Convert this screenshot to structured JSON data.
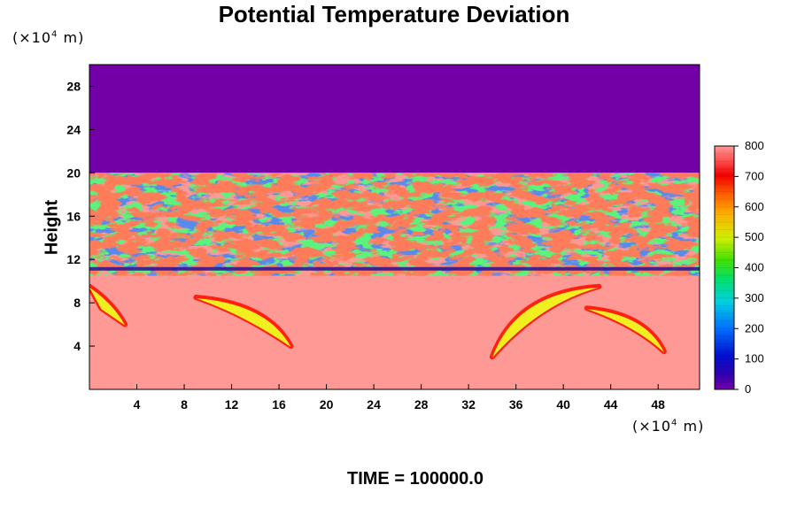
{
  "chart_data": {
    "type": "heatmap",
    "title": "Potential Temperature Deviation",
    "ylabel": "Height",
    "xlabel": "",
    "x_unit": "(×10⁴ m)",
    "y_unit": "(×10⁴ m)",
    "unit_prefix": "(×10",
    "unit_exp": "4",
    "unit_suffix": " m)",
    "footer": "TIME = 100000.0",
    "xlim": [
      0,
      51.5
    ],
    "ylim": [
      0,
      30
    ],
    "x_ticks": [
      "4",
      "8",
      "12",
      "16",
      "20",
      "24",
      "28",
      "32",
      "36",
      "40",
      "44",
      "48"
    ],
    "y_ticks": [
      "4",
      "8",
      "12",
      "16",
      "20",
      "24",
      "28"
    ],
    "colorbar": {
      "min": 0,
      "max": 800,
      "tick_labels": [
        "0",
        "100",
        "200",
        "300",
        "400",
        "500",
        "600",
        "700",
        "800"
      ]
    },
    "regions": [
      {
        "y_range": [
          20,
          30
        ],
        "value": 0,
        "description_color": "purple"
      },
      {
        "y_range": [
          0,
          20
        ],
        "value": 800,
        "description_color": "salmon"
      }
    ],
    "colors": {
      "low": "#7300a6",
      "high": "#ff9996"
    }
  }
}
